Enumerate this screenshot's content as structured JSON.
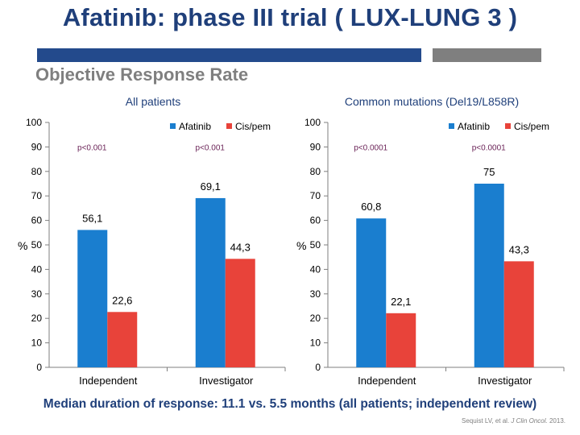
{
  "slide": {
    "title": "Afatinib: phase III trial ( LUX-LUNG 3 )",
    "subtitle": "Objective Response Rate",
    "footer": "Median duration of response: 11.1 vs. 5.5 months (all patients; independent review)",
    "citation_pre": "Sequist LV, et al. ",
    "citation_journal": "J Clin Oncol.",
    "citation_post": " 2013."
  },
  "colors": {
    "afatinib": "#1a7ecf",
    "cispem": "#e8433a",
    "pvalue": "#6b2458",
    "axis": "#7f7f7f",
    "accent": "#1f3f7a"
  },
  "chart_data": [
    {
      "type": "bar",
      "title": "All patients",
      "ylabel": "%",
      "ylim": [
        0,
        100
      ],
      "yticks": [
        0,
        10,
        20,
        30,
        40,
        50,
        60,
        70,
        80,
        90,
        100
      ],
      "categories": [
        "Independent",
        "Investigator"
      ],
      "series": [
        {
          "name": "Afatinib",
          "values": [
            56.1,
            69.1
          ],
          "labels": [
            "56,1",
            "69,1"
          ]
        },
        {
          "name": "Cis/pem",
          "values": [
            22.6,
            44.3
          ],
          "labels": [
            "22,6",
            "44,3"
          ]
        }
      ],
      "annotations": [
        {
          "category": "Independent",
          "text": "p<0.001",
          "y": 90
        },
        {
          "category": "Investigator",
          "text": "p<0.001",
          "y": 90
        }
      ],
      "legend": "top-right",
      "grid": false
    },
    {
      "type": "bar",
      "title": "Common mutations (Del19/L858R)",
      "ylabel": "%",
      "ylim": [
        0,
        100
      ],
      "yticks": [
        0,
        10,
        20,
        30,
        40,
        50,
        60,
        70,
        80,
        90,
        100
      ],
      "categories": [
        "Independent",
        "Investigator"
      ],
      "series": [
        {
          "name": "Afatinib",
          "values": [
            60.8,
            75
          ],
          "labels": [
            "60,8",
            "75"
          ]
        },
        {
          "name": "Cis/pem",
          "values": [
            22.1,
            43.3
          ],
          "labels": [
            "22,1",
            "43,3"
          ]
        }
      ],
      "annotations": [
        {
          "category": "Independent",
          "text": "p<0.0001",
          "y": 90
        },
        {
          "category": "Investigator",
          "text": "p<0.0001",
          "y": 90
        }
      ],
      "legend": "top-right",
      "grid": false
    }
  ]
}
